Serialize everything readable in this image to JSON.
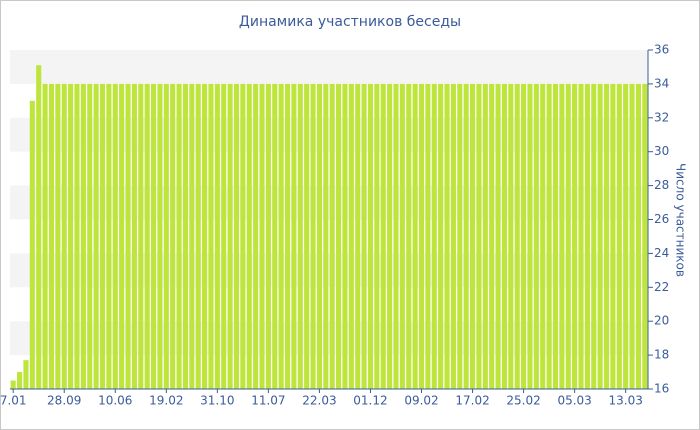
{
  "chart_data": {
    "type": "bar",
    "title": "Динамика участников беседы",
    "y_axis_label": "Число участников",
    "categories": [
      "7.01",
      null,
      null,
      null,
      null,
      null,
      null,
      null,
      "28.09",
      null,
      null,
      null,
      null,
      null,
      null,
      null,
      "10.06",
      null,
      null,
      null,
      null,
      null,
      null,
      null,
      "19.02",
      null,
      null,
      null,
      null,
      null,
      null,
      null,
      "31.10",
      null,
      null,
      null,
      null,
      null,
      null,
      null,
      "11.07",
      null,
      null,
      null,
      null,
      null,
      null,
      null,
      "22.03",
      null,
      null,
      null,
      null,
      null,
      null,
      null,
      "01.12",
      null,
      null,
      null,
      null,
      null,
      null,
      null,
      "09.02",
      null,
      null,
      null,
      null,
      null,
      null,
      null,
      "17.02",
      null,
      null,
      null,
      null,
      null,
      null,
      null,
      "25.02",
      null,
      null,
      null,
      null,
      null,
      null,
      null,
      "05.03",
      null,
      null,
      null,
      null,
      null,
      null,
      null,
      "13.03",
      null,
      null,
      null
    ],
    "values": [
      16.5,
      17,
      17.7,
      33,
      35.1,
      34,
      34,
      34,
      34,
      34,
      34,
      34,
      34,
      34,
      34,
      34,
      34,
      34,
      34,
      34,
      34,
      34,
      34,
      34,
      34,
      34,
      34,
      34,
      34,
      34,
      34,
      34,
      34,
      34,
      34,
      34,
      34,
      34,
      34,
      34,
      34,
      34,
      34,
      34,
      34,
      34,
      34,
      34,
      34,
      34,
      34,
      34,
      34,
      34,
      34,
      34,
      34,
      34,
      34,
      34,
      34,
      34,
      34,
      34,
      34,
      34,
      34,
      34,
      34,
      34,
      34,
      34,
      34,
      34,
      34,
      34,
      34,
      34,
      34,
      34,
      34,
      34,
      34,
      34,
      34,
      34,
      34,
      34,
      34,
      34,
      34,
      34,
      34,
      34,
      34,
      34,
      34,
      34,
      34,
      34
    ],
    "color": "#bde53c",
    "ylim": [
      16,
      36
    ],
    "yticks": [
      16,
      18,
      20,
      22,
      24,
      26,
      28,
      30,
      32,
      34,
      36
    ],
    "grid": true
  }
}
